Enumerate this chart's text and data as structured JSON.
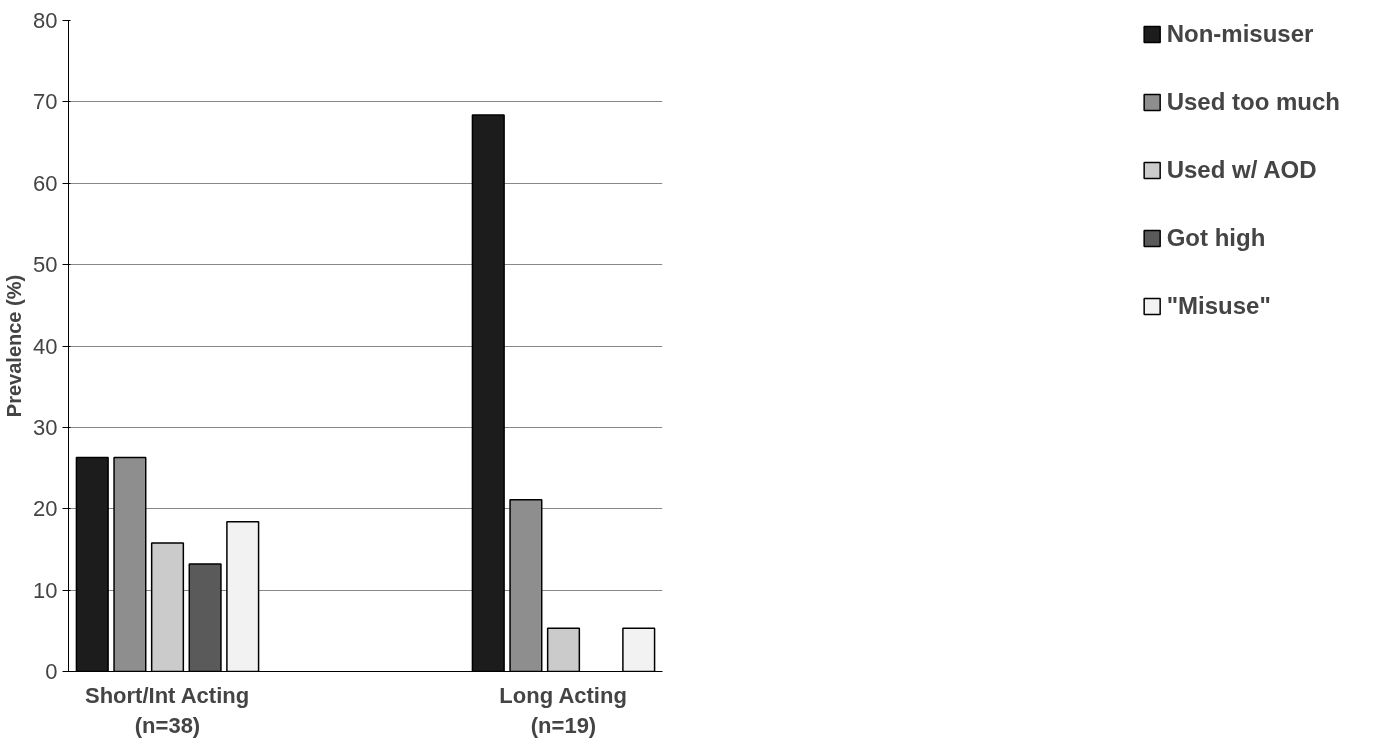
{
  "chart_data": {
    "type": "bar",
    "ylabel": "Prevalence (%)",
    "categories": [
      "Short/Int Acting\n(n=38)",
      null,
      "Long Acting\n(n=19)"
    ],
    "series": [
      {
        "name": "Non-misuser",
        "color": "#1c1c1c",
        "values": [
          26.3,
          null,
          68.4
        ]
      },
      {
        "name": "Used too much",
        "color": "#8e8e8e",
        "values": [
          26.3,
          null,
          21.1
        ]
      },
      {
        "name": "Used w/ AOD",
        "color": "#cbcbcb",
        "values": [
          15.8,
          null,
          5.3
        ]
      },
      {
        "name": "Got high",
        "color": "#5a5a5a",
        "values": [
          13.2,
          null,
          null
        ]
      },
      {
        "name": "\"Misuse\"",
        "color": "#f2f2f2",
        "values": [
          18.4,
          null,
          5.3
        ]
      }
    ],
    "ylim": [
      0,
      80
    ],
    "yticks": [
      0,
      10,
      20,
      30,
      40,
      50,
      60,
      70,
      80
    ],
    "grid": "y",
    "legend": "right"
  }
}
